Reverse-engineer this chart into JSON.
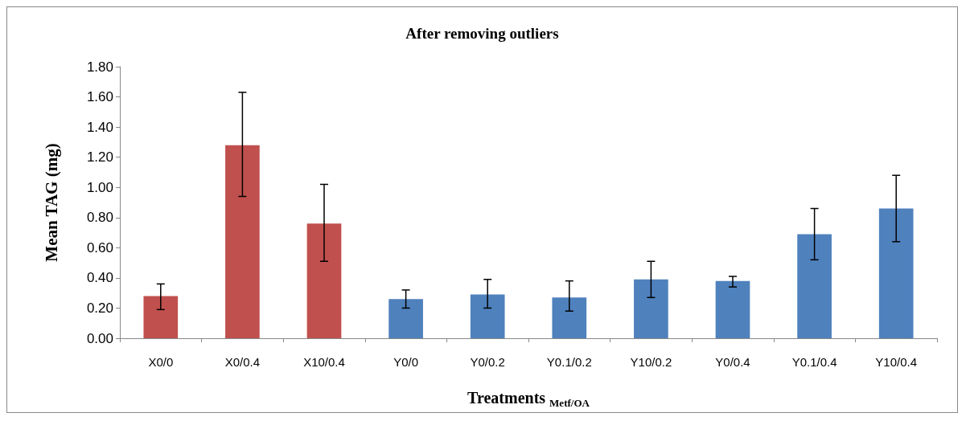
{
  "chart_data": {
    "type": "bar",
    "title": "After removing outliers",
    "xlabel": "Treatments $_{Metf/OA}$",
    "ylabel": "Mean TAG (mg)",
    "categories": [
      "X0/0",
      "X0/0.4",
      "X10/0.4",
      "Y0/0",
      "Y0/0.2",
      "Y0.1/0.2",
      "Y10/0.2",
      "Y0/0.4",
      "Y0.1/0.4",
      "Y10/0.4"
    ],
    "values": [
      0.28,
      1.28,
      0.76,
      0.26,
      0.29,
      0.27,
      0.39,
      0.38,
      0.69,
      0.86
    ],
    "colors": [
      "#c0504d",
      "#c0504d",
      "#c0504d",
      "#4f81bd",
      "#4f81bd",
      "#4f81bd",
      "#4f81bd",
      "#4f81bd",
      "#4f81bd",
      "#4f81bd"
    ],
    "errors": [
      [
        0.19,
        0.36
      ],
      [
        0.94,
        1.63
      ],
      [
        0.51,
        1.02
      ],
      [
        0.2,
        0.32
      ],
      [
        0.2,
        0.39
      ],
      [
        0.18,
        0.38
      ],
      [
        0.27,
        0.51
      ],
      [
        0.34,
        0.41
      ],
      [
        0.52,
        0.86
      ],
      [
        0.64,
        1.08
      ]
    ],
    "ylim": [
      0,
      1.8
    ],
    "yticks": [
      {
        "value": 0,
        "label": "0.00"
      },
      {
        "value": 0.2,
        "label": "0.20"
      },
      {
        "value": 0.4,
        "label": "0.40"
      },
      {
        "value": 0.6,
        "label": "0.60"
      },
      {
        "value": 0.8,
        "label": "0.80"
      },
      {
        "value": 1.0,
        "label": "1.00"
      },
      {
        "value": 1.2,
        "label": "1.20"
      },
      {
        "value": 1.4,
        "label": "1.40"
      },
      {
        "value": 1.6,
        "label": "1.60"
      },
      {
        "value": 1.8,
        "label": "1.80"
      }
    ],
    "grid": false
  }
}
